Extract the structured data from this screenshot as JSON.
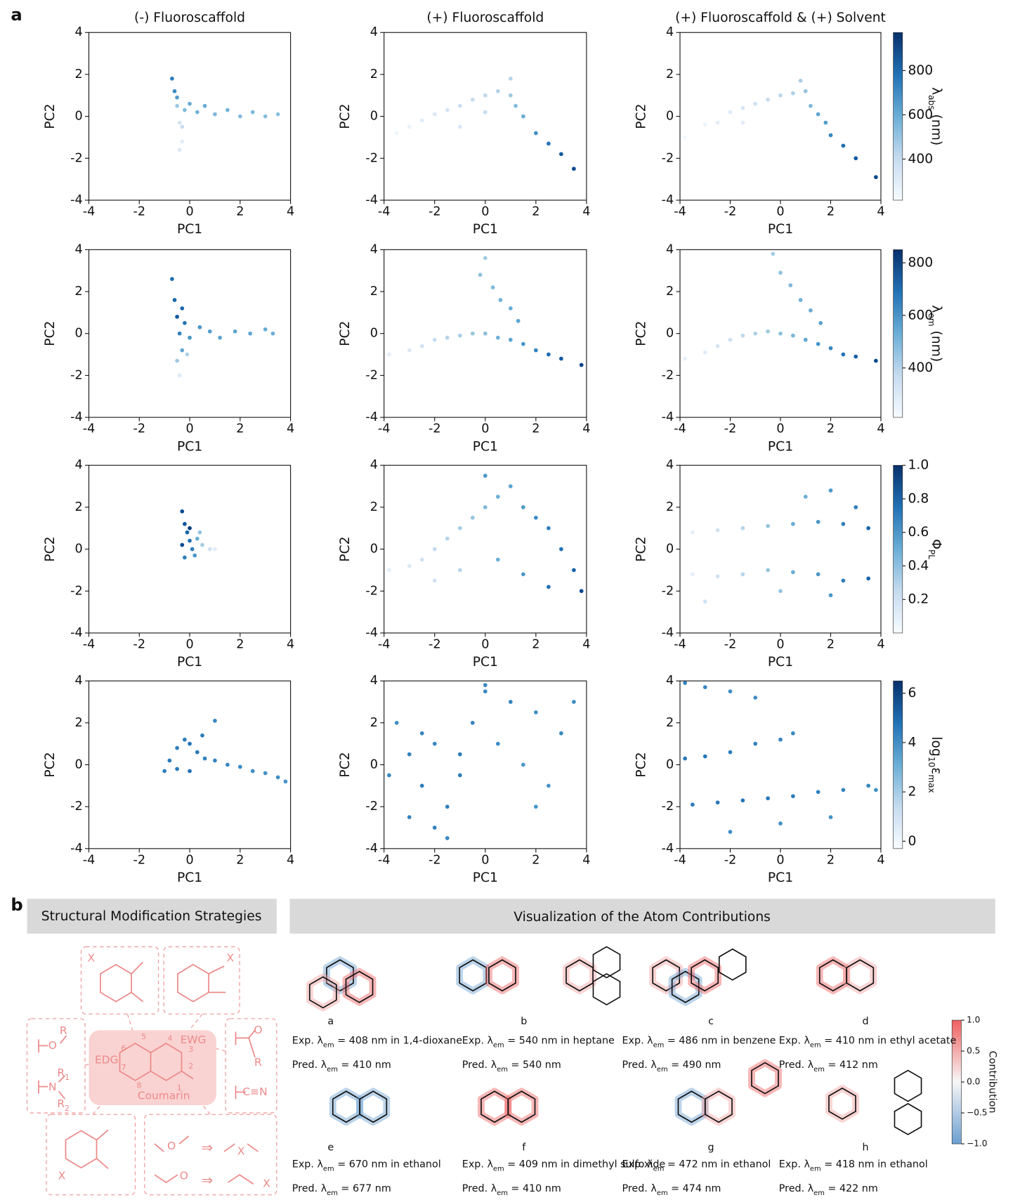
{
  "panel_labels": [
    "a",
    "b"
  ],
  "column_titles": [
    "(-) Fluoroscaffold",
    "(+) Fluoroscaffold",
    "(+) Fluoroscaffold & (+) Solvent"
  ],
  "colorbars": [
    {
      "label": [
        {
          "text": "λ"
        },
        {
          "text": "abs",
          "sub": true
        },
        {
          "text": " (nm)"
        }
      ],
      "lim": [
        214,
        972
      ],
      "ticks": [
        400,
        600,
        800
      ]
    },
    {
      "label": [
        {
          "text": "λ"
        },
        {
          "text": "em",
          "sub": true
        },
        {
          "text": " (nm)"
        }
      ],
      "lim": [
        212,
        850
      ],
      "ticks": [
        400,
        600,
        800
      ]
    },
    {
      "label": [
        {
          "text": "Φ"
        },
        {
          "text": "PL",
          "sub": true
        }
      ],
      "lim": [
        0,
        1
      ],
      "ticks": [
        0.2,
        0.4,
        0.6,
        0.8,
        {
          "value": 1,
          "label": "1.0"
        }
      ]
    },
    {
      "label": [
        {
          "text": "log"
        },
        {
          "text": "10",
          "sub": true
        },
        {
          "text": "ε"
        },
        {
          "text": "max",
          "sub": true
        }
      ],
      "lim": [
        -0.3,
        6.5
      ],
      "ticks": [
        0,
        2,
        4,
        6
      ]
    }
  ],
  "chart_data": [
    {
      "type": "scatter",
      "xlabel": "PC1",
      "ylabel": "PC2",
      "xlim": [
        -4,
        4
      ],
      "ylim": [
        -4,
        4
      ],
      "xticks": [
        -4,
        -2,
        0,
        2,
        4
      ],
      "yticks": [
        -4,
        -2,
        0,
        2,
        4
      ],
      "x": [
        -0.7,
        -0.6,
        -0.5,
        -0.4,
        -0.3,
        -0.5,
        -0.4,
        -0.2,
        0.0,
        0.3,
        0.6,
        1.0,
        1.5,
        2.0,
        2.5,
        3.0,
        3.5,
        -0.3
      ],
      "y": [
        1.8,
        1.2,
        0.5,
        -0.3,
        -1.2,
        0.9,
        -1.6,
        0.3,
        0.6,
        0.2,
        0.5,
        0.1,
        0.3,
        0.0,
        0.2,
        0.0,
        0.1,
        -0.5
      ],
      "c": [
        750,
        700,
        500,
        350,
        300,
        650,
        320,
        550,
        600,
        580,
        600,
        560,
        580,
        550,
        560,
        540,
        530,
        400
      ]
    },
    {
      "type": "scatter",
      "xlabel": "PC1",
      "ylabel": "PC2",
      "xlim": [
        -4,
        4
      ],
      "ylim": [
        -4,
        4
      ],
      "xticks": [
        -4,
        -2,
        0,
        2,
        4
      ],
      "yticks": [
        -4,
        -2,
        0,
        2,
        4
      ],
      "x": [
        -3.5,
        -3,
        -2.5,
        -2,
        -1.5,
        -1,
        -0.5,
        0,
        0.5,
        1,
        1.2,
        1.5,
        2,
        2.5,
        3,
        3.5,
        -1,
        0,
        1
      ],
      "y": [
        -0.8,
        -0.5,
        -0.2,
        0.1,
        0.3,
        0.5,
        0.8,
        1.0,
        1.2,
        1.0,
        0.5,
        0,
        -0.8,
        -1.3,
        -1.8,
        -2.5,
        -0.5,
        0.2,
        1.8
      ],
      "c": [
        250,
        270,
        300,
        320,
        350,
        380,
        400,
        420,
        450,
        500,
        550,
        600,
        700,
        780,
        850,
        900,
        330,
        400,
        450
      ]
    },
    {
      "type": "scatter",
      "xlabel": "PC1",
      "ylabel": "PC2",
      "xlim": [
        -4,
        4
      ],
      "ylim": [
        -4,
        4
      ],
      "xticks": [
        -4,
        -2,
        0,
        2,
        4
      ],
      "yticks": [
        -4,
        -2,
        0,
        2,
        4
      ],
      "x": [
        -3.8,
        -3,
        -2.5,
        -2,
        -1.5,
        -1,
        -0.5,
        0,
        0.5,
        1,
        1.2,
        1.5,
        2,
        2.5,
        3,
        3.8,
        -1.5,
        0.8,
        1.8
      ],
      "y": [
        -1,
        -0.4,
        -0.3,
        0.2,
        0.4,
        0.6,
        0.8,
        1.0,
        1.1,
        1.2,
        0.5,
        0.1,
        -0.9,
        -1.4,
        -2.0,
        -2.9,
        -0.3,
        1.7,
        -0.3
      ],
      "c": [
        240,
        260,
        290,
        310,
        340,
        370,
        400,
        430,
        460,
        520,
        560,
        620,
        720,
        800,
        860,
        900,
        300,
        470,
        650
      ]
    },
    {
      "type": "scatter",
      "xlabel": "PC1",
      "ylabel": "PC2",
      "xlim": [
        -4,
        4
      ],
      "ylim": [
        -4,
        4
      ],
      "xticks": [
        -4,
        -2,
        0,
        2,
        4
      ],
      "yticks": [
        -4,
        -2,
        0,
        2,
        4
      ],
      "x": [
        -0.7,
        -0.6,
        -0.5,
        -0.4,
        -0.3,
        -0.5,
        -0.4,
        -0.2,
        0,
        0.4,
        0.8,
        1.2,
        1.8,
        2.4,
        3.0,
        3.3,
        -0.1,
        -0.3
      ],
      "y": [
        2.6,
        1.6,
        0.8,
        0,
        -0.8,
        -1.3,
        -2.0,
        0.5,
        -0.2,
        0.3,
        0.1,
        -0.2,
        0.1,
        0,
        0.2,
        0,
        -1.0,
        1.2
      ],
      "c": [
        700,
        720,
        750,
        650,
        550,
        450,
        300,
        680,
        600,
        600,
        580,
        560,
        560,
        550,
        540,
        530,
        420,
        720
      ]
    },
    {
      "type": "scatter",
      "xlabel": "PC1",
      "ylabel": "PC2",
      "xlim": [
        -4,
        4
      ],
      "ylim": [
        -4,
        4
      ],
      "xticks": [
        -4,
        -2,
        0,
        2,
        4
      ],
      "yticks": [
        -4,
        -2,
        0,
        2,
        4
      ],
      "x": [
        -3.8,
        -3,
        -2.5,
        -2,
        -1.5,
        -1,
        -0.5,
        0,
        0.5,
        1,
        1.5,
        2,
        2.5,
        3,
        3.8,
        0,
        -0.2,
        0.3,
        0.6,
        1,
        1.3
      ],
      "y": [
        -1,
        -0.8,
        -0.6,
        -0.3,
        -0.2,
        -0.1,
        0,
        0,
        -0.2,
        -0.3,
        -0.5,
        -0.8,
        -1,
        -1.2,
        -1.5,
        3.6,
        2.8,
        2.2,
        1.6,
        1.2,
        0.6
      ],
      "c": [
        280,
        300,
        330,
        360,
        400,
        430,
        460,
        480,
        520,
        560,
        600,
        650,
        700,
        750,
        800,
        450,
        480,
        500,
        520,
        540,
        560
      ]
    },
    {
      "type": "scatter",
      "xlabel": "PC1",
      "ylabel": "PC2",
      "xlim": [
        -4,
        4
      ],
      "ylim": [
        -4,
        4
      ],
      "xticks": [
        -4,
        -2,
        0,
        2,
        4
      ],
      "yticks": [
        -4,
        -2,
        0,
        2,
        4
      ],
      "x": [
        -3.8,
        -3,
        -2.5,
        -2,
        -1.5,
        -1,
        -0.5,
        0,
        0.5,
        1,
        1.5,
        2,
        2.5,
        3,
        3.8,
        -0.3,
        0,
        0.4,
        0.8,
        1.2,
        1.6
      ],
      "y": [
        -1.2,
        -0.9,
        -0.6,
        -0.3,
        -0.1,
        0,
        0.1,
        0,
        -0.1,
        -0.3,
        -0.5,
        -0.7,
        -1,
        -1.1,
        -1.3,
        3.8,
        2.9,
        2.3,
        1.6,
        1.1,
        0.5
      ],
      "c": [
        270,
        290,
        320,
        350,
        390,
        420,
        450,
        480,
        510,
        550,
        600,
        640,
        690,
        740,
        790,
        440,
        470,
        500,
        520,
        540,
        570
      ]
    },
    {
      "type": "scatter",
      "xlabel": "PC1",
      "ylabel": "PC2",
      "xlim": [
        -4,
        4
      ],
      "ylim": [
        -4,
        4
      ],
      "xticks": [
        -4,
        -2,
        0,
        2,
        4
      ],
      "yticks": [
        -4,
        -2,
        0,
        2,
        4
      ],
      "x": [
        -0.3,
        -0.2,
        -0.1,
        0,
        0.1,
        0.2,
        -0.3,
        0,
        0.3,
        0.5,
        0.8,
        1.0,
        -0.2,
        0.4
      ],
      "y": [
        1.8,
        1.2,
        0.8,
        0.4,
        0,
        -0.3,
        0.2,
        1.0,
        0.5,
        0.2,
        0,
        0,
        -0.4,
        0.8
      ],
      "c": [
        0.9,
        0.85,
        0.8,
        0.75,
        0.7,
        0.6,
        0.9,
        0.95,
        0.5,
        0.35,
        0.2,
        0.1,
        0.7,
        0.4
      ]
    },
    {
      "type": "scatter",
      "xlabel": "PC1",
      "ylabel": "PC2",
      "xlim": [
        -4,
        4
      ],
      "ylim": [
        -4,
        4
      ],
      "xticks": [
        -4,
        -2,
        0,
        2,
        4
      ],
      "yticks": [
        -4,
        -2,
        0,
        2,
        4
      ],
      "x": [
        -3.8,
        -3,
        -2.5,
        -2,
        -1.5,
        -1,
        -0.5,
        0,
        0.5,
        1,
        1.5,
        2,
        2.5,
        3,
        3.5,
        3.8,
        -1,
        0.5,
        1.5,
        2.5,
        0,
        -2
      ],
      "y": [
        -1,
        -0.8,
        -0.5,
        0,
        0.5,
        1,
        1.5,
        2,
        2.5,
        3,
        2,
        1.5,
        1,
        0,
        -1,
        -2,
        -1,
        -0.5,
        -1.2,
        -1.8,
        3.5,
        -1.5
      ],
      "c": [
        0.1,
        0.15,
        0.2,
        0.25,
        0.3,
        0.35,
        0.4,
        0.45,
        0.5,
        0.55,
        0.6,
        0.65,
        0.7,
        0.75,
        0.8,
        0.9,
        0.3,
        0.5,
        0.6,
        0.75,
        0.6,
        0.2
      ]
    },
    {
      "type": "scatter",
      "xlabel": "PC1",
      "ylabel": "PC2",
      "xlim": [
        -4,
        4
      ],
      "ylim": [
        -4,
        4
      ],
      "xticks": [
        -4,
        -2,
        0,
        2,
        4
      ],
      "yticks": [
        -4,
        -2,
        0,
        2,
        4
      ],
      "x": [
        -3.5,
        -2.5,
        -1.5,
        -0.5,
        0.5,
        1.5,
        2.5,
        3.5,
        -3.5,
        -2.5,
        -1.5,
        -0.5,
        0.5,
        1.5,
        2.5,
        3.5,
        1,
        2,
        3,
        -3,
        0,
        2
      ],
      "y": [
        0.8,
        0.9,
        1.0,
        1.1,
        1.2,
        1.3,
        1.2,
        1.0,
        -1.2,
        -1.3,
        -1.2,
        -1.0,
        -1.1,
        -1.2,
        -1.5,
        -1.4,
        2.5,
        2.8,
        2.0,
        -2.5,
        -2.0,
        -2.2
      ],
      "c": [
        0.1,
        0.2,
        0.3,
        0.4,
        0.5,
        0.6,
        0.7,
        0.8,
        0.1,
        0.2,
        0.3,
        0.4,
        0.5,
        0.6,
        0.7,
        0.8,
        0.5,
        0.6,
        0.7,
        0.2,
        0.4,
        0.6
      ]
    },
    {
      "type": "scatter",
      "xlabel": "PC1",
      "ylabel": "PC2",
      "xlim": [
        -4,
        4
      ],
      "ylim": [
        -4,
        4
      ],
      "xticks": [
        -4,
        -2,
        0,
        2,
        4
      ],
      "yticks": [
        -4,
        -2,
        0,
        2,
        4
      ],
      "x": [
        -1,
        -0.8,
        -0.5,
        -0.2,
        0,
        0.3,
        0.6,
        1,
        1.5,
        2,
        2.5,
        3,
        3.5,
        3.8,
        0,
        0.5,
        1,
        -0.5
      ],
      "y": [
        -0.3,
        0.2,
        0.8,
        1.2,
        1.0,
        0.6,
        0.3,
        0.2,
        0,
        -0.1,
        -0.3,
        -0.4,
        -0.6,
        -0.8,
        -0.3,
        1.4,
        2.1,
        -0.2
      ],
      "c": [
        4.5,
        4.6,
        4.4,
        4.5,
        4.7,
        4.6,
        4.4,
        4.3,
        4.2,
        4.2,
        4.1,
        4.0,
        4.0,
        3.9,
        4.8,
        4.5,
        4.2,
        4.6
      ]
    },
    {
      "type": "scatter",
      "xlabel": "PC1",
      "ylabel": "PC2",
      "xlim": [
        -4,
        4
      ],
      "ylim": [
        -4,
        4
      ],
      "xticks": [
        -4,
        -2,
        0,
        2,
        4
      ],
      "yticks": [
        -4,
        -2,
        0,
        2,
        4
      ],
      "x": [
        -3.8,
        -3,
        -2.5,
        -2,
        -1.5,
        -1,
        -0.5,
        0,
        0.5,
        1,
        1.5,
        2,
        2.5,
        3,
        3.5,
        -3,
        -2,
        -1,
        -2.5,
        -1.5,
        0,
        2,
        -3.5
      ],
      "y": [
        -0.5,
        0.5,
        -1,
        1,
        -2,
        0.5,
        2,
        3.5,
        1,
        3,
        0,
        2.5,
        -1,
        1.5,
        3,
        -2.5,
        -3,
        -0.5,
        1.5,
        -3.5,
        3.8,
        -2,
        2.0
      ],
      "c": [
        4.2,
        4.3,
        4.5,
        4.2,
        4.4,
        4.5,
        4.3,
        4.2,
        4.1,
        4.3,
        3.8,
        4.0,
        3.9,
        4.2,
        4.1,
        4.3,
        4.4,
        4.5,
        4.3,
        4.2,
        4.2,
        3.9,
        4.0
      ]
    },
    {
      "type": "scatter",
      "xlabel": "PC1",
      "ylabel": "PC2",
      "xlim": [
        -4,
        4
      ],
      "ylim": [
        -4,
        4
      ],
      "xticks": [
        -4,
        -2,
        0,
        2,
        4
      ],
      "yticks": [
        -4,
        -2,
        0,
        2,
        4
      ],
      "x": [
        -3.8,
        -3,
        -2,
        -1,
        -3.8,
        -3,
        -2,
        -1,
        0,
        0.5,
        -3.5,
        -2.5,
        -1.5,
        -0.5,
        0.5,
        1.5,
        2.5,
        3.5,
        -2,
        0,
        2,
        3.8
      ],
      "y": [
        3.9,
        3.7,
        3.5,
        3.2,
        0.3,
        0.4,
        0.6,
        1.0,
        1.2,
        1.5,
        -1.9,
        -1.8,
        -1.7,
        -1.6,
        -1.5,
        -1.3,
        -1.2,
        -1.0,
        -3.2,
        -2.8,
        -2.5,
        -1.2
      ],
      "c": [
        4.3,
        4.2,
        4.1,
        4.0,
        4.6,
        4.7,
        4.5,
        4.4,
        4.3,
        4.2,
        4.5,
        4.6,
        4.7,
        4.6,
        4.5,
        4.4,
        4.3,
        4.2,
        4.1,
        4.0,
        3.9,
        4.0
      ]
    }
  ],
  "panel_b": {
    "left_header": "Structural Modification Strategies",
    "right_header": "Visualization of the Atom Contributions",
    "scheme_texts": [
      "EDG",
      "EWG",
      "Coumarin",
      "1",
      "2",
      "3",
      "4",
      "5",
      "6",
      "7",
      "8",
      "R",
      "O",
      {
        "text": "R",
        "sub": "1"
      },
      "N",
      {
        "text": "R",
        "sub": "2"
      },
      "O",
      "R",
      "C≡N",
      "X",
      "X",
      "X",
      "O",
      "⇒",
      "X",
      "O",
      "⇒",
      "X"
    ],
    "molecules": [
      {
        "letter": "a",
        "exp": {
          "pre": "Exp. λ",
          "sub": "em",
          "post": " = 408 nm in 1,4-dioxane"
        },
        "pred": {
          "pre": "Pred. λ",
          "sub": "em",
          "post": " = 410 nm"
        }
      },
      {
        "letter": "b",
        "exp": {
          "pre": "Exp. λ",
          "sub": "em",
          "post": " = 540 nm in heptane"
        },
        "pred": {
          "pre": "Pred. λ",
          "sub": "em",
          "post": " = 540 nm"
        }
      },
      {
        "letter": "c",
        "exp": {
          "pre": "Exp. λ",
          "sub": "em",
          "post": " = 486 nm in benzene"
        },
        "pred": {
          "pre": "Pred. λ",
          "sub": "em",
          "post": " = 490 nm"
        }
      },
      {
        "letter": "d",
        "exp": {
          "pre": "Exp. λ",
          "sub": "em",
          "post": " = 410 nm in ethyl acetate"
        },
        "pred": {
          "pre": "Pred. λ",
          "sub": "em",
          "post": " = 412 nm"
        }
      },
      {
        "letter": "e",
        "exp": {
          "pre": "Exp. λ",
          "sub": "em",
          "post": " = 670 nm in ethanol"
        },
        "pred": {
          "pre": "Pred. λ",
          "sub": "em",
          "post": " = 677 nm"
        }
      },
      {
        "letter": "f",
        "exp": {
          "pre": "Exp. λ",
          "sub": "em",
          "post": " = 409 nm in dimethyl sulfoxide"
        },
        "pred": {
          "pre": "Pred. λ",
          "sub": "em",
          "post": " = 410 nm"
        }
      },
      {
        "letter": "g",
        "exp": {
          "pre": "Exp. λ",
          "sub": "em",
          "post": " = 472 nm in ethanol"
        },
        "pred": {
          "pre": "Pred. λ",
          "sub": "em",
          "post": " = 474 nm"
        }
      },
      {
        "letter": "h",
        "exp": {
          "pre": "Exp. λ",
          "sub": "em",
          "post": " = 418 nm in ethanol"
        },
        "pred": {
          "pre": "Pred. λ",
          "sub": "em",
          "post": " = 422 nm"
        }
      }
    ],
    "contribution_bar": {
      "label": "Contribution",
      "lim": [
        -1,
        1
      ],
      "ticks": [
        {
          "value": 1,
          "label": "1.0"
        },
        {
          "value": 0.5,
          "label": "0.5"
        },
        {
          "value": 0,
          "label": "0.0"
        },
        {
          "value": -0.5,
          "label": "−0.5"
        },
        {
          "value": -1,
          "label": "−1.0"
        }
      ]
    }
  }
}
